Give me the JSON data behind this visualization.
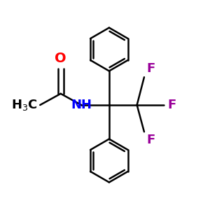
{
  "bg_color": "#ffffff",
  "bond_color": "#000000",
  "O_color": "#ff0000",
  "N_color": "#0000ff",
  "F_color": "#990099",
  "line_width": 1.8,
  "figsize": [
    3.0,
    3.0
  ],
  "dpi": 100,
  "xlim": [
    0,
    10
  ],
  "ylim": [
    0,
    10
  ]
}
